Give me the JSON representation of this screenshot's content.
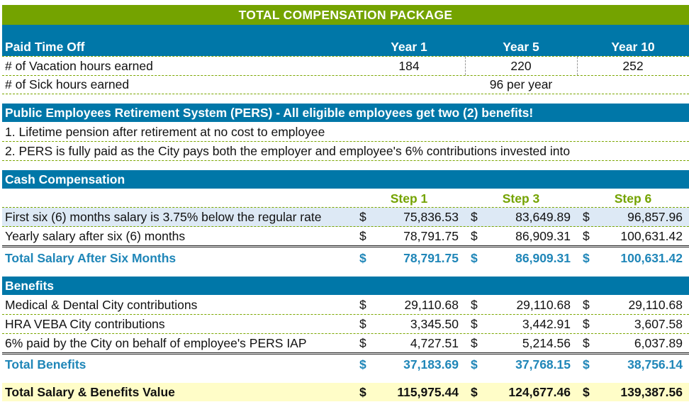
{
  "title": "TOTAL COMPENSATION PACKAGE",
  "pto": {
    "header": "Paid Time Off",
    "years": [
      "Year 1",
      "Year 5",
      "Year 10"
    ],
    "vacation": {
      "label": "# of Vacation hours earned",
      "values": [
        "184",
        "220",
        "252"
      ]
    },
    "sick": {
      "label": "# of Sick hours earned",
      "value": "96 per year"
    }
  },
  "pers": {
    "header": "Public Employees Retirement System (PERS) - All eligible employees get two (2) benefits!",
    "items": [
      "1. Lifetime pension after retirement at no cost to employee",
      "2.  PERS is fully paid as the City pays both the employer and employee's 6% contributions invested into"
    ]
  },
  "cash": {
    "header": "Cash Compensation",
    "steps": [
      "Step 1",
      "Step 3",
      "Step 6"
    ],
    "currency": "$",
    "rows": [
      {
        "label": "First six (6) months salary is 3.75% below the regular rate",
        "values": [
          "75,836.53",
          "83,649.89",
          "96,857.96"
        ]
      },
      {
        "label": "Yearly salary after six (6) months",
        "values": [
          "78,791.75",
          "86,909.31",
          "100,631.42"
        ]
      }
    ],
    "total": {
      "label": "Total Salary After Six Months",
      "values": [
        "78,791.75",
        "86,909.31",
        "100,631.42"
      ]
    }
  },
  "benefits": {
    "header": "Benefits",
    "rows": [
      {
        "label": "Medical & Dental City contributions",
        "values": [
          "29,110.68",
          "29,110.68",
          "29,110.68"
        ]
      },
      {
        "label": "HRA VEBA City contributions",
        "values": [
          "3,345.50",
          "3,442.91",
          "3,607.58"
        ]
      },
      {
        "label": "6% paid by the City on behalf of employee's PERS IAP",
        "values": [
          "4,727.51",
          "5,214.56",
          "6,037.89"
        ]
      }
    ],
    "total": {
      "label": "Total Benefits",
      "values": [
        "37,183.69",
        "37,768.15",
        "38,756.14"
      ]
    }
  },
  "grand_total": {
    "label": "Total Salary & Benefits Value",
    "values": [
      "115,975.44",
      "124,677.46",
      "139,387.56"
    ]
  },
  "colors": {
    "green": "#74a300",
    "blue": "#0077a8",
    "highlight": "#dde9f5",
    "yellow": "#fffdc8"
  }
}
